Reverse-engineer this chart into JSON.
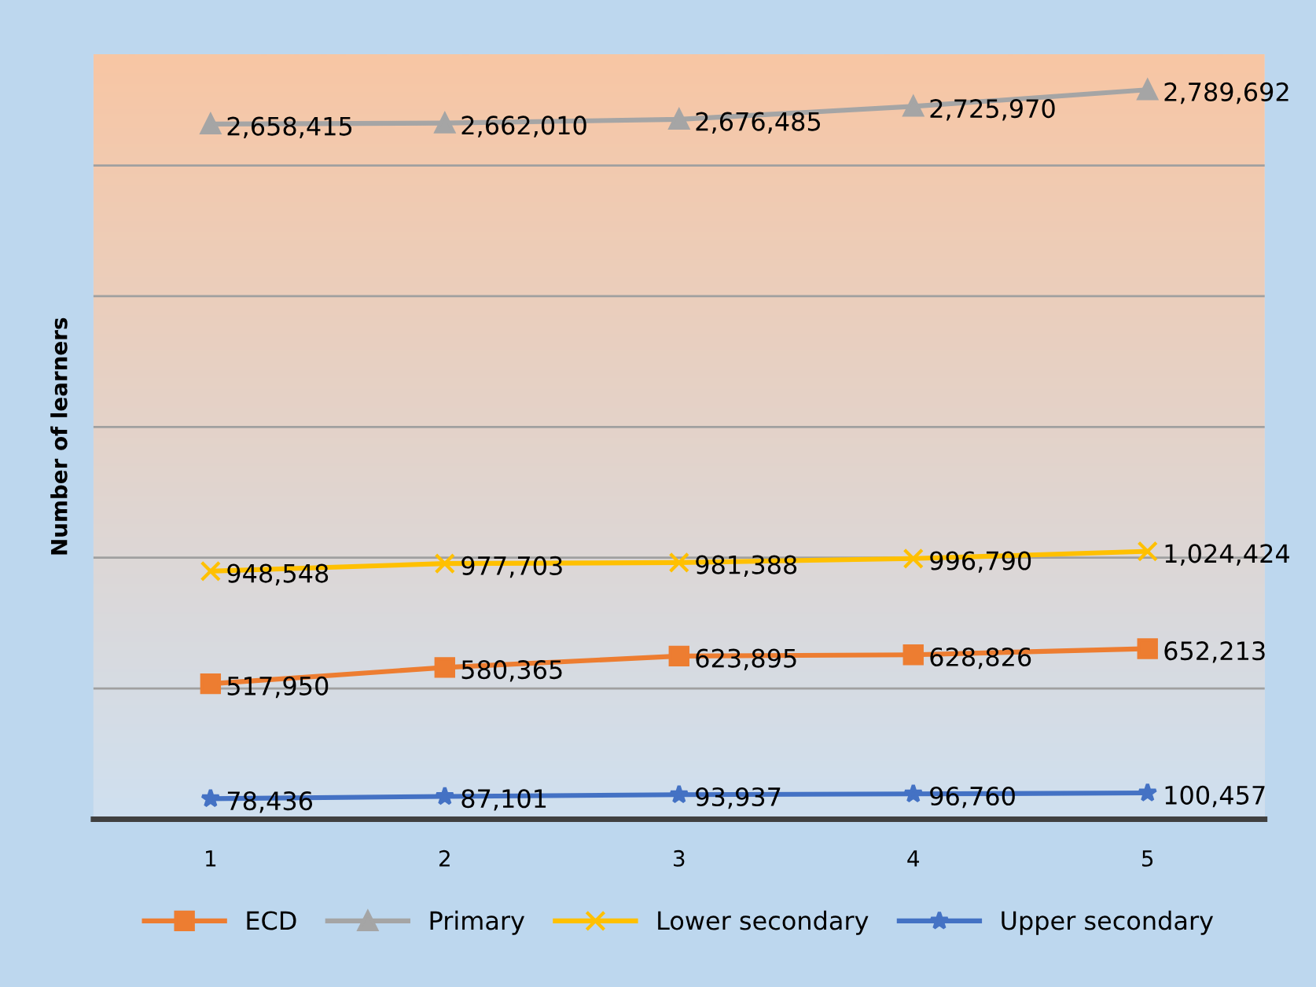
{
  "chart_data": {
    "type": "line",
    "ylabel": "Number of learners",
    "categories": [
      "1",
      "2",
      "3",
      "4",
      "5"
    ],
    "series": [
      {
        "name": "ECD",
        "color": "#ed7d31",
        "marker": "square",
        "values": [
          517950,
          580365,
          623895,
          628826,
          652213
        ],
        "value_labels": [
          "517,950",
          "580,365",
          "623,895",
          "628,826",
          "652,213"
        ]
      },
      {
        "name": "Primary",
        "color": "#a5a5a5",
        "marker": "triangle",
        "values": [
          2658415,
          2662010,
          2676485,
          2725970,
          2789692
        ],
        "value_labels": [
          "2,658,415",
          "2,662,010",
          "2,676,485",
          "2,725,970",
          "2,789,692"
        ]
      },
      {
        "name": "Lower secondary",
        "color": "#ffc000",
        "marker": "cross",
        "values": [
          948548,
          977703,
          981388,
          996790,
          1024424
        ],
        "value_labels": [
          "948,548",
          "977,703",
          "981,388",
          "996,790",
          "1,024,424"
        ]
      },
      {
        "name": "Upper secondary",
        "color": "#4472c4",
        "marker": "star",
        "values": [
          78436,
          87101,
          93937,
          96760,
          100457
        ],
        "value_labels": [
          "78,436",
          "87,101",
          "93,937",
          "96,760",
          "100,457"
        ]
      }
    ],
    "tick_labels": "x",
    "grid": "y",
    "legend": "bottom",
    "line_style": "solid"
  }
}
